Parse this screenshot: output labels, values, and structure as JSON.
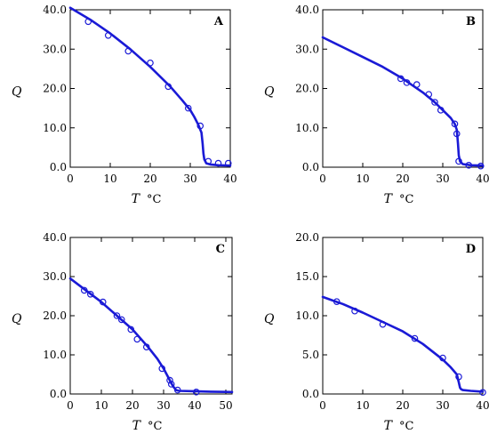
{
  "chart_data": [
    {
      "type": "scatter",
      "title": "A",
      "xlabel": "T",
      "xunit": "°C",
      "ylabel": "Q",
      "xlim": [
        0,
        40
      ],
      "ylim": [
        0,
        40
      ],
      "xticks": [
        0,
        10,
        20,
        30,
        40
      ],
      "yticks": [
        "0.0",
        "10.0",
        "20.0",
        "30.0",
        "40.0"
      ],
      "series": [
        {
          "kind": "points",
          "x": [
            4.5,
            9.5,
            14.5,
            20,
            24.5,
            29.5,
            32.5,
            34.5,
            37,
            39.5
          ],
          "y": [
            37,
            33.5,
            29.5,
            26.5,
            20.5,
            15,
            10.5,
            1.5,
            1,
            1
          ]
        },
        {
          "kind": "line",
          "x": [
            0,
            5,
            10,
            15,
            20,
            25,
            28,
            30,
            31,
            32,
            32.8,
            33.1,
            33.3,
            33.5,
            34,
            35,
            37,
            40
          ],
          "y": [
            40.5,
            37.5,
            34,
            30,
            25.5,
            20.5,
            17,
            14.5,
            12.8,
            10.8,
            8.8,
            6,
            3.5,
            2,
            1,
            0.7,
            0.5,
            0.4
          ]
        }
      ]
    },
    {
      "type": "scatter",
      "title": "B",
      "xlabel": "T",
      "xunit": "°C",
      "ylabel": "Q",
      "xlim": [
        0,
        40
      ],
      "ylim": [
        0,
        40
      ],
      "xticks": [
        0,
        10,
        20,
        30,
        40
      ],
      "yticks": [
        "0.0",
        "10.0",
        "20.0",
        "30.0",
        "40.0"
      ],
      "series": [
        {
          "kind": "points",
          "x": [
            19.5,
            21,
            23.5,
            26.5,
            28,
            29.5,
            33,
            33.5,
            34,
            36.5,
            39.5
          ],
          "y": [
            22.5,
            21.5,
            21,
            18.5,
            16.5,
            14.5,
            11,
            8.5,
            1.5,
            0.5,
            0.3
          ]
        },
        {
          "kind": "line",
          "x": [
            0,
            5,
            10,
            15,
            20,
            25,
            28,
            30,
            32,
            33,
            33.5,
            33.8,
            34,
            34.3,
            35,
            37,
            40
          ],
          "y": [
            33,
            30.5,
            28,
            25.5,
            22.5,
            19,
            16.5,
            14.5,
            12.5,
            11,
            9.5,
            6,
            3,
            1.5,
            0.8,
            0.5,
            0.4
          ]
        }
      ]
    },
    {
      "type": "scatter",
      "title": "C",
      "xlabel": "T",
      "xunit": "°C",
      "ylabel": "Q",
      "xlim": [
        0,
        52
      ],
      "ylim": [
        0,
        40
      ],
      "xticks": [
        0,
        10,
        20,
        30,
        40,
        50
      ],
      "yticks": [
        "0.0",
        "10.0",
        "20.0",
        "30.0",
        "40.0"
      ],
      "series": [
        {
          "kind": "points",
          "x": [
            4.5,
            6.5,
            10.5,
            15,
            16.5,
            19.5,
            21.5,
            24.5,
            29.5,
            32,
            32.5,
            34.5,
            40.5
          ],
          "y": [
            26.5,
            25.5,
            23.5,
            20,
            19,
            16.5,
            14,
            12,
            6.5,
            3.5,
            2.5,
            1,
            0.5
          ]
        },
        {
          "kind": "line",
          "x": [
            0,
            5,
            10,
            15,
            20,
            25,
            28,
            30,
            32,
            33,
            34,
            35,
            40,
            45,
            52
          ],
          "y": [
            29.5,
            26.5,
            23.5,
            20,
            16.5,
            12,
            9,
            6.5,
            3.5,
            2,
            1,
            0.8,
            0.7,
            0.6,
            0.5
          ]
        }
      ]
    },
    {
      "type": "scatter",
      "title": "D",
      "xlabel": "T",
      "xunit": "°C",
      "ylabel": "Q",
      "xlim": [
        0,
        40
      ],
      "ylim": [
        0,
        20
      ],
      "xticks": [
        0,
        10,
        20,
        30,
        40
      ],
      "yticks": [
        "0.0",
        "5.0",
        "10.0",
        "15.0",
        "20.0"
      ],
      "series": [
        {
          "kind": "points",
          "x": [
            3.5,
            8,
            15,
            23,
            30,
            34,
            40
          ],
          "y": [
            11.8,
            10.6,
            8.9,
            7.1,
            4.6,
            2.2,
            0.2
          ]
        },
        {
          "kind": "line",
          "x": [
            0,
            5,
            10,
            15,
            20,
            25,
            30,
            32,
            33.5,
            34,
            34.3,
            34.6,
            35,
            37,
            40
          ],
          "y": [
            12.4,
            11.5,
            10.4,
            9.2,
            8,
            6.4,
            4.4,
            3.4,
            2.5,
            1.5,
            0.8,
            0.6,
            0.5,
            0.4,
            0.3
          ]
        }
      ]
    }
  ]
}
